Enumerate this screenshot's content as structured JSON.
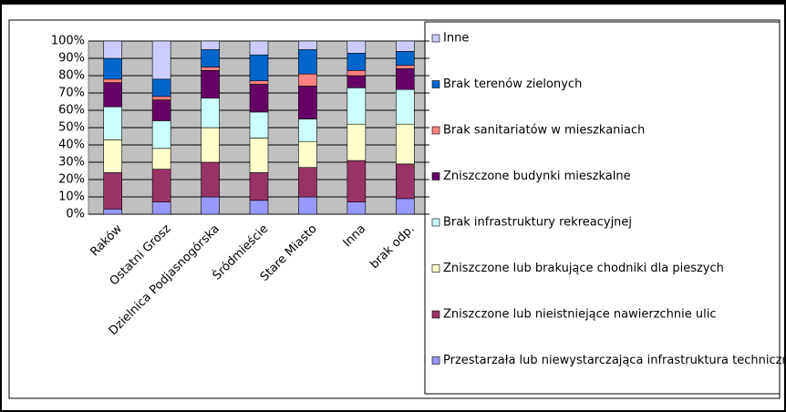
{
  "chart_data": {
    "type": "stacked_bar_percent",
    "categories": [
      "Raków",
      "Ostatni Grosz",
      "Dzielnica Podjasnogórska",
      "Śródmieście",
      "Stare Miasto",
      "Inna",
      "brak odp."
    ],
    "series": [
      {
        "name": "Przestarzała lub niewystarczająca infrastruktura techniczna",
        "color": "#9999ff",
        "values": [
          3,
          7,
          10,
          8,
          10,
          7,
          9
        ]
      },
      {
        "name": "Zniszczone lub nieistniejące nawierzchnie ulic",
        "color": "#993366",
        "values": [
          21,
          19,
          20,
          16,
          17,
          24,
          20
        ]
      },
      {
        "name": "Zniszczone lub brakujące chodniki dla pieszych",
        "color": "#ffffcc",
        "values": [
          19,
          12,
          20,
          20,
          15,
          21,
          23
        ]
      },
      {
        "name": "Brak infrastruktury rekreacyjnej",
        "color": "#ccffff",
        "values": [
          19,
          16,
          17,
          15,
          13,
          21,
          20
        ]
      },
      {
        "name": "Zniszczone budynki mieszkalne",
        "color": "#660066",
        "values": [
          14,
          12,
          16,
          16,
          19,
          7,
          12
        ]
      },
      {
        "name": "Brak sanitariatów w mieszkaniach",
        "color": "#ff8080",
        "values": [
          2,
          2,
          2,
          2,
          7,
          3,
          2
        ]
      },
      {
        "name": "Brak terenów zielonych",
        "color": "#0066cc",
        "values": [
          12,
          10,
          10,
          15,
          14,
          10,
          8
        ]
      },
      {
        "name": "Inne",
        "color": "#ccccff",
        "values": [
          10,
          22,
          5,
          8,
          5,
          7,
          6
        ]
      }
    ],
    "ylim": [
      0,
      100
    ],
    "yticks": [
      {
        "value": 0,
        "label": "0%"
      },
      {
        "value": 10,
        "label": "10%"
      },
      {
        "value": 20,
        "label": "20%"
      },
      {
        "value": 30,
        "label": "30%"
      },
      {
        "value": 40,
        "label": "40%"
      },
      {
        "value": 50,
        "label": "50%"
      },
      {
        "value": 60,
        "label": "60%"
      },
      {
        "value": 70,
        "label": "70%"
      },
      {
        "value": 80,
        "label": "80%"
      },
      {
        "value": 90,
        "label": "90%"
      },
      {
        "value": 100,
        "label": "100%"
      }
    ],
    "grid": true,
    "legend": "right"
  }
}
